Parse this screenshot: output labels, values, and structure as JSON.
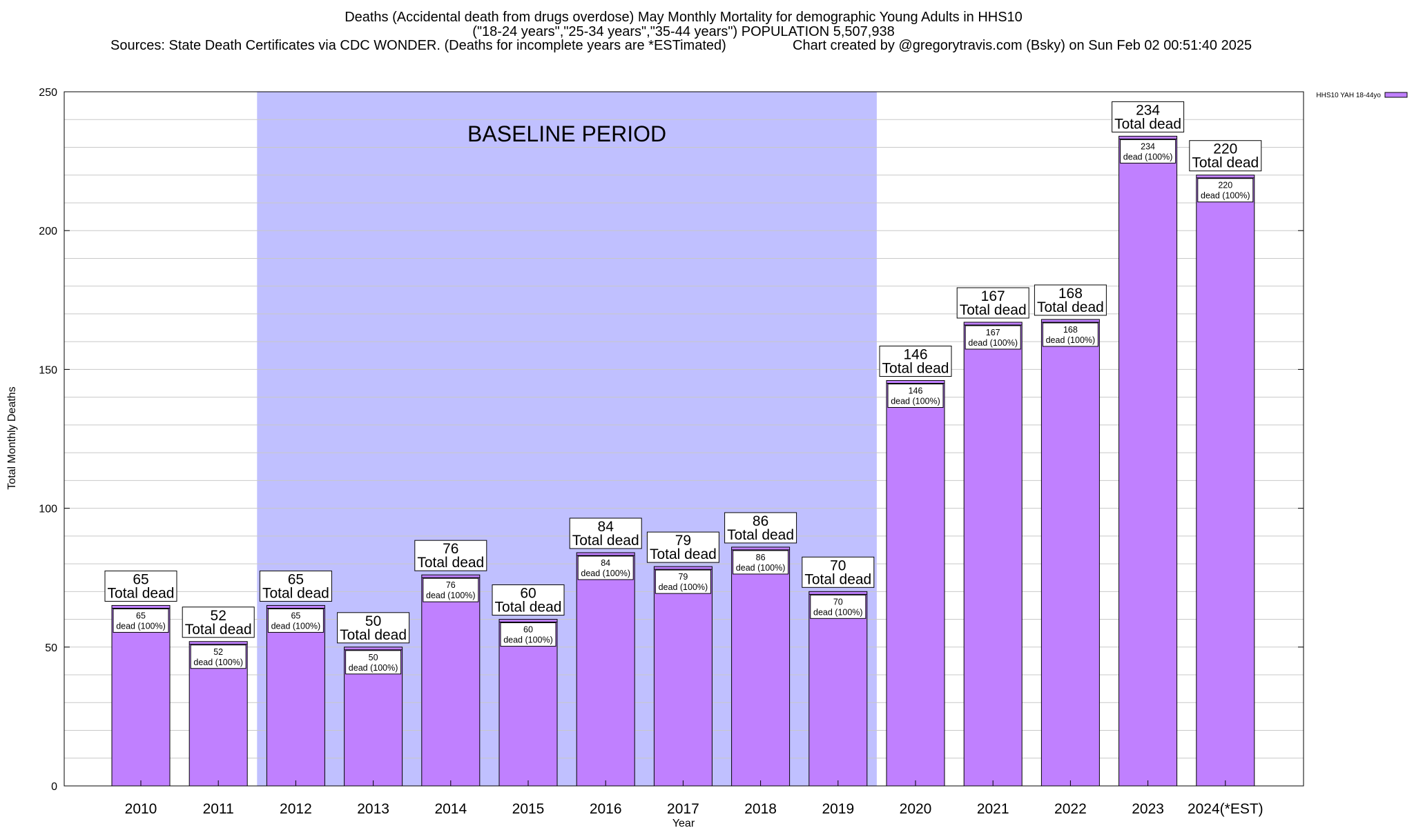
{
  "chart_data": {
    "type": "bar",
    "title_lines": [
      "Deaths (Accidental death from drugs overdose) May Monthly Mortality for demographic Young Adults in HHS10",
      "(\"18-24 years\",\"25-34 years\",\"35-44 years\") POPULATION 5,507,938"
    ],
    "sources_text": "Sources: State Death Certificates via CDC WONDER. (Deaths for incomplete years are *ESTimated)",
    "credit_text": "Chart created by @gregorytravis.com (Bsky) on Sun Feb 02 00:51:40 2025",
    "xlabel": "Year",
    "ylabel": "Total Monthly Deaths",
    "ylim": [
      0,
      250
    ],
    "yticks": [
      0,
      50,
      100,
      150,
      200,
      250
    ],
    "minor_grid_step": 10,
    "categories": [
      "2010",
      "2011",
      "2012",
      "2013",
      "2014",
      "2015",
      "2016",
      "2017",
      "2018",
      "2019",
      "2020",
      "2021",
      "2022",
      "2023",
      "2024(*EST)"
    ],
    "series": [
      {
        "name": "HHS10 YAH 18-44yo",
        "color": "#c080ff",
        "values": [
          65,
          52,
          65,
          50,
          76,
          60,
          84,
          79,
          86,
          70,
          146,
          167,
          168,
          234,
          220
        ]
      }
    ],
    "total_label": "Total dead",
    "segment_label": "dead (100%)",
    "baseline": {
      "label": "BASELINE PERIOD",
      "start_category": "2012",
      "end_category": "2019",
      "color": "#c0c0ff"
    },
    "legend_position": "top-right"
  }
}
